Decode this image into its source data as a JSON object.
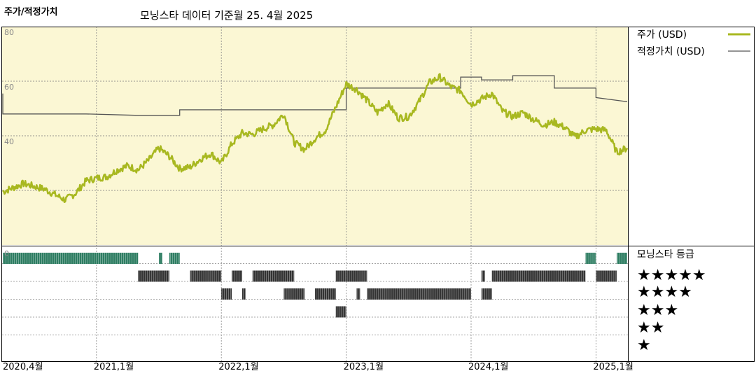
{
  "header": {
    "left_title": "주가/적정가치",
    "subtitle": "모닝스타 데이터 기준월 25. 4월 2025"
  },
  "colors": {
    "price_line": "#a8b820",
    "fair_value_line": "#555555",
    "plot_bg": "#fbf7d4",
    "five_star_bars": "#2e7d62",
    "other_star_bars": "#333333"
  },
  "legend": {
    "price_label": "주가 (USD)",
    "fair_value_label": "적정가치 (USD)",
    "rating_title": "모닝스타 등급",
    "stars": [
      "★★★★★",
      "★★★★",
      "★★★",
      "★★",
      "★"
    ]
  },
  "chart_data": {
    "type": "line",
    "x_tick_labels": [
      "2020,4월",
      "2021,1월",
      "2022,1월",
      "2023,1월",
      "2024,1월",
      "2025,1월"
    ],
    "x_tick_dates": [
      "2020-04",
      "2021-01",
      "2022-01",
      "2023-01",
      "2024-01",
      "2025-01"
    ],
    "x_range": [
      "2020-04",
      "2025-04"
    ],
    "y_tick_labels": [
      "80",
      "60",
      "40",
      "0"
    ],
    "ylim": [
      0,
      80
    ],
    "grid": true,
    "series": [
      {
        "name": "주가 (USD)",
        "points": [
          [
            "2020-04",
            19.5
          ],
          [
            "2020-05",
            21.0
          ],
          [
            "2020-06",
            22.5
          ],
          [
            "2020-07",
            21.5
          ],
          [
            "2020-08",
            20.5
          ],
          [
            "2020-09",
            18.5
          ],
          [
            "2020-10",
            16.5
          ],
          [
            "2020-11",
            19.0
          ],
          [
            "2020-12",
            23.5
          ],
          [
            "2021-01",
            24.5
          ],
          [
            "2021-02",
            25.0
          ],
          [
            "2021-03",
            27.5
          ],
          [
            "2021-04",
            29.0
          ],
          [
            "2021-05",
            27.5
          ],
          [
            "2021-06",
            31.0
          ],
          [
            "2021-07",
            35.5
          ],
          [
            "2021-08",
            32.5
          ],
          [
            "2021-09",
            28.0
          ],
          [
            "2021-10",
            28.5
          ],
          [
            "2021-11",
            31.5
          ],
          [
            "2021-12",
            33.5
          ],
          [
            "2022-01",
            30.0
          ],
          [
            "2022-02",
            37.0
          ],
          [
            "2022-03",
            41.0
          ],
          [
            "2022-04",
            40.5
          ],
          [
            "2022-05",
            42.5
          ],
          [
            "2022-06",
            44.0
          ],
          [
            "2022-07",
            48.0
          ],
          [
            "2022-08",
            37.5
          ],
          [
            "2022-09",
            35.0
          ],
          [
            "2022-10",
            39.0
          ],
          [
            "2022-11",
            42.0
          ],
          [
            "2022-12",
            50.5
          ],
          [
            "2023-01",
            59.0
          ],
          [
            "2023-02",
            57.0
          ],
          [
            "2023-03",
            53.0
          ],
          [
            "2023-04",
            48.5
          ],
          [
            "2023-05",
            52.0
          ],
          [
            "2023-06",
            46.5
          ],
          [
            "2023-07",
            47.0
          ],
          [
            "2023-08",
            52.5
          ],
          [
            "2023-09",
            59.5
          ],
          [
            "2023-10",
            61.5
          ],
          [
            "2023-11",
            58.0
          ],
          [
            "2023-12",
            56.5
          ],
          [
            "2024-01",
            51.5
          ],
          [
            "2024-02",
            53.5
          ],
          [
            "2024-03",
            55.5
          ],
          [
            "2024-04",
            49.0
          ],
          [
            "2024-05",
            47.0
          ],
          [
            "2024-06",
            48.5
          ],
          [
            "2024-07",
            46.0
          ],
          [
            "2024-08",
            44.0
          ],
          [
            "2024-09",
            45.0
          ],
          [
            "2024-10",
            43.0
          ],
          [
            "2024-11",
            39.5
          ],
          [
            "2024-12",
            42.0
          ],
          [
            "2025-01",
            42.5
          ],
          [
            "2025-02",
            42.0
          ],
          [
            "2025-03",
            34.0
          ],
          [
            "2025-04",
            35.5
          ]
        ]
      },
      {
        "name": "적정가치 (USD)",
        "points": [
          [
            "2020-04",
            55.5
          ],
          [
            "2020-04",
            48.0
          ],
          [
            "2020-12",
            48.0
          ],
          [
            "2021-05",
            47.5
          ],
          [
            "2021-09",
            47.5
          ],
          [
            "2021-09",
            49.5
          ],
          [
            "2022-07",
            49.5
          ],
          [
            "2022-07",
            49.5
          ],
          [
            "2023-01",
            49.5
          ],
          [
            "2023-01",
            57.5
          ],
          [
            "2023-06",
            57.5
          ],
          [
            "2023-06",
            57.5
          ],
          [
            "2023-12",
            57.5
          ],
          [
            "2023-12",
            61.5
          ],
          [
            "2024-02",
            61.5
          ],
          [
            "2024-02",
            60.5
          ],
          [
            "2024-05",
            60.5
          ],
          [
            "2024-05",
            62.0
          ],
          [
            "2024-09",
            62.0
          ],
          [
            "2024-09",
            57.5
          ],
          [
            "2025-01",
            57.5
          ],
          [
            "2025-01",
            54.0
          ],
          [
            "2025-04",
            52.5
          ]
        ]
      }
    ],
    "rating_history": {
      "rows": [
        "★★★★★",
        "★★★★",
        "★★★",
        "★★",
        "★"
      ],
      "segments": [
        {
          "stars": 5,
          "from": "2020-04",
          "to": "2021-05"
        },
        {
          "stars": 5,
          "from": "2021-07",
          "to": "2021-07"
        },
        {
          "stars": 5,
          "from": "2021-08",
          "to": "2021-09"
        },
        {
          "stars": 4,
          "from": "2021-05",
          "to": "2021-07"
        },
        {
          "stars": 4,
          "from": "2021-07",
          "to": "2021-08"
        },
        {
          "stars": 4,
          "from": "2021-10",
          "to": "2022-01"
        },
        {
          "stars": 4,
          "from": "2022-02",
          "to": "2022-03"
        },
        {
          "stars": 4,
          "from": "2022-04",
          "to": "2022-08"
        },
        {
          "stars": 4,
          "from": "2022-12",
          "to": "2023-01"
        },
        {
          "stars": 4,
          "from": "2023-01",
          "to": "2023-03"
        },
        {
          "stars": 4,
          "from": "2024-02",
          "to": "2024-02"
        },
        {
          "stars": 4,
          "from": "2024-03",
          "to": "2024-12"
        },
        {
          "stars": 4,
          "from": "2025-01",
          "to": "2025-03"
        },
        {
          "stars": 3,
          "from": "2022-01",
          "to": "2022-02"
        },
        {
          "stars": 3,
          "from": "2022-03",
          "to": "2022-03"
        },
        {
          "stars": 3,
          "from": "2022-07",
          "to": "2022-09"
        },
        {
          "stars": 3,
          "from": "2022-10",
          "to": "2022-12"
        },
        {
          "stars": 3,
          "from": "2023-02",
          "to": "2023-02"
        },
        {
          "stars": 3,
          "from": "2023-03",
          "to": "2024-01"
        },
        {
          "stars": 3,
          "from": "2024-02",
          "to": "2024-03"
        },
        {
          "stars": 2,
          "from": "2022-12",
          "to": "2023-01"
        },
        {
          "stars": 5,
          "from": "2024-12",
          "to": "2025-01"
        },
        {
          "stars": 5,
          "from": "2025-03",
          "to": "2025-04"
        }
      ]
    }
  }
}
